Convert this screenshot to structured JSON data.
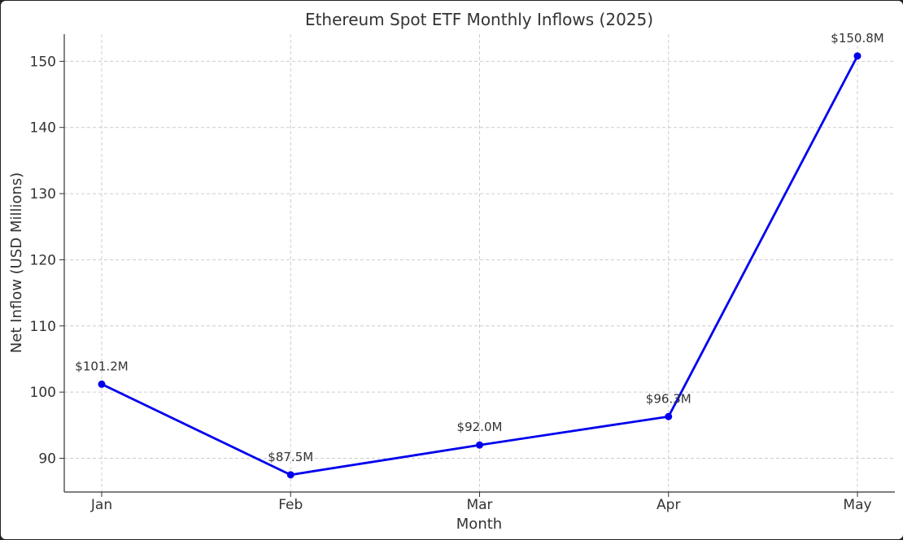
{
  "chart_data": {
    "type": "line",
    "title": "Ethereum Spot ETF Monthly Inflows (2025)",
    "xlabel": "Month",
    "ylabel": "Net Inflow (USD Millions)",
    "categories": [
      "Jan",
      "Feb",
      "Mar",
      "Apr",
      "May"
    ],
    "series": [
      {
        "values": [
          101.2,
          87.5,
          92.0,
          96.3,
          150.8
        ],
        "color": "#0000ee",
        "marker": "circle"
      }
    ],
    "data_labels": [
      "$101.2M",
      "$87.5M",
      "$92.0M",
      "$96.3M",
      "$150.8M"
    ],
    "y_ticks": [
      90,
      100,
      110,
      120,
      130,
      140,
      150
    ],
    "ylim": [
      84.9,
      154.1
    ],
    "grid": true,
    "grid_style": "dashed"
  }
}
